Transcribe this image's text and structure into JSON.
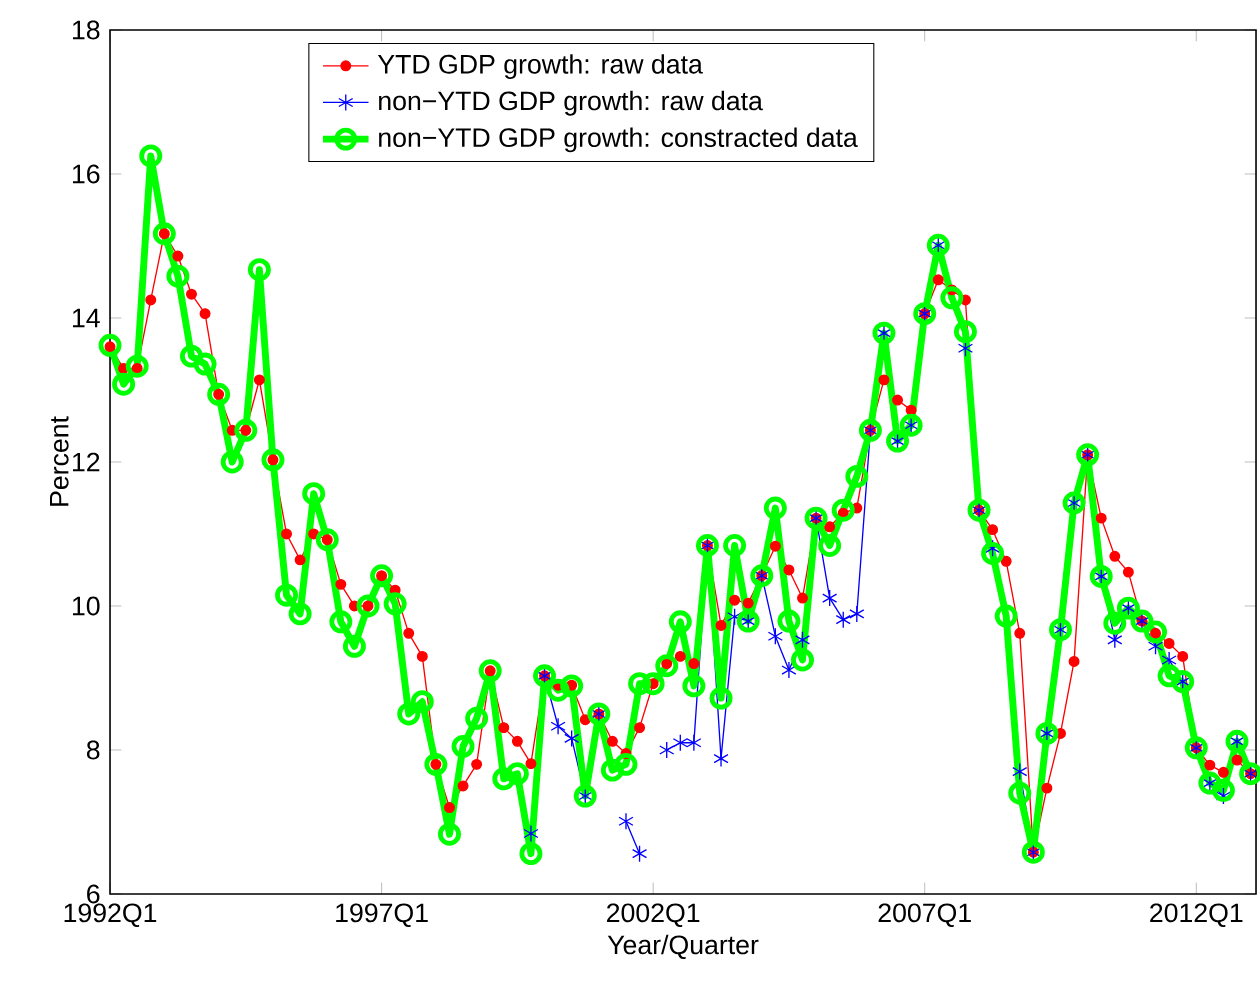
{
  "chart_data": {
    "type": "line",
    "xlabel": "Year/Quarter",
    "ylabel": "Percent",
    "categories": [
      "1992Q1",
      null,
      null,
      null,
      null,
      null,
      null,
      null,
      null,
      null,
      null,
      null,
      null,
      null,
      null,
      null,
      null,
      null,
      null,
      null,
      "1997Q1",
      null,
      null,
      null,
      null,
      null,
      null,
      null,
      null,
      null,
      null,
      null,
      null,
      null,
      null,
      null,
      null,
      null,
      null,
      null,
      "2002Q1",
      null,
      null,
      null,
      null,
      null,
      null,
      null,
      null,
      null,
      null,
      null,
      null,
      null,
      null,
      null,
      null,
      null,
      null,
      null,
      "2007Q1",
      null,
      null,
      null,
      null,
      null,
      null,
      null,
      null,
      null,
      null,
      null,
      null,
      null,
      null,
      null,
      null,
      null,
      null,
      null,
      "2012Q1",
      null,
      null,
      null,
      null
    ],
    "series": [
      {
        "name": "YTD GDP growth: raw data",
        "color": "#ff0000",
        "marker": "circle",
        "values": [
          13.6,
          13.3,
          13.3,
          14.25,
          15.17,
          14.86,
          14.33,
          14.06,
          12.94,
          12.44,
          12.44,
          13.14,
          12.03,
          11.0,
          10.64,
          11.0,
          10.92,
          10.3,
          10.0,
          10.0,
          10.42,
          10.22,
          9.62,
          9.3,
          7.8,
          7.2,
          7.5,
          7.8,
          9.1,
          8.31,
          8.12,
          7.81,
          9.03,
          8.9,
          8.9,
          8.42,
          8.5,
          8.12,
          7.95,
          8.31,
          8.92,
          9.2,
          9.3,
          9.2,
          10.84,
          9.73,
          10.08,
          10.04,
          10.42,
          10.83,
          10.5,
          10.11,
          11.22,
          11.1,
          11.29,
          11.36,
          12.44,
          13.14,
          12.86,
          12.72,
          14.06,
          14.53,
          14.39,
          14.25,
          11.33,
          11.06,
          10.62,
          9.62,
          6.58,
          7.47,
          8.23,
          9.23,
          12.1,
          11.22,
          10.69,
          10.47,
          9.79,
          9.62,
          9.48,
          9.3,
          8.03,
          7.79,
          7.69,
          7.86,
          7.67
        ]
      },
      {
        "name": "non−YTD GDP growth: raw data",
        "color": "#0000ff",
        "marker": "cross",
        "values": [
          null,
          null,
          null,
          null,
          null,
          null,
          null,
          null,
          null,
          null,
          null,
          null,
          null,
          null,
          null,
          null,
          null,
          null,
          null,
          null,
          null,
          null,
          null,
          null,
          null,
          null,
          null,
          null,
          null,
          null,
          null,
          6.84,
          9.03,
          8.33,
          8.16,
          7.36,
          8.5,
          null,
          7.01,
          6.56,
          null,
          8.0,
          8.1,
          8.1,
          10.84,
          7.88,
          9.85,
          9.79,
          10.42,
          9.58,
          9.11,
          9.53,
          11.22,
          10.11,
          9.81,
          9.89,
          12.44,
          13.79,
          12.29,
          12.51,
          14.06,
          15.01,
          null,
          13.58,
          11.33,
          10.8,
          null,
          7.7,
          6.58,
          8.23,
          9.67,
          11.43,
          12.1,
          10.41,
          9.53,
          9.97,
          9.79,
          9.44,
          9.25,
          8.95,
          8.03,
          7.54,
          7.36,
          8.12,
          7.67
        ]
      },
      {
        "name": "non−YTD GDP growth: constracted data",
        "color": "#00ff00",
        "marker": "circle",
        "values": [
          13.62,
          13.08,
          13.33,
          16.25,
          15.17,
          14.58,
          13.47,
          13.36,
          12.94,
          12.0,
          12.44,
          14.67,
          12.03,
          10.15,
          9.89,
          11.56,
          10.92,
          9.78,
          9.44,
          10.0,
          10.42,
          10.03,
          8.5,
          8.67,
          7.8,
          6.83,
          8.05,
          8.44,
          9.1,
          7.6,
          7.67,
          6.56,
          9.03,
          8.83,
          8.89,
          7.36,
          8.5,
          7.72,
          7.8,
          8.92,
          8.92,
          9.17,
          9.78,
          8.89,
          10.84,
          8.72,
          10.84,
          9.79,
          10.42,
          11.36,
          9.79,
          9.25,
          11.22,
          10.84,
          11.33,
          11.8,
          12.44,
          13.79,
          12.29,
          12.51,
          14.06,
          15.01,
          14.28,
          13.81,
          11.33,
          10.73,
          9.86,
          7.4,
          6.58,
          8.23,
          9.67,
          11.43,
          12.1,
          10.41,
          9.76,
          9.97,
          9.79,
          9.64,
          9.03,
          8.95,
          8.03,
          7.54,
          7.44,
          8.12,
          7.67
        ]
      }
    ],
    "ylim": [
      6,
      18
    ],
    "yticks": [
      6,
      8,
      10,
      12,
      14,
      16,
      18
    ],
    "legend": "top"
  }
}
